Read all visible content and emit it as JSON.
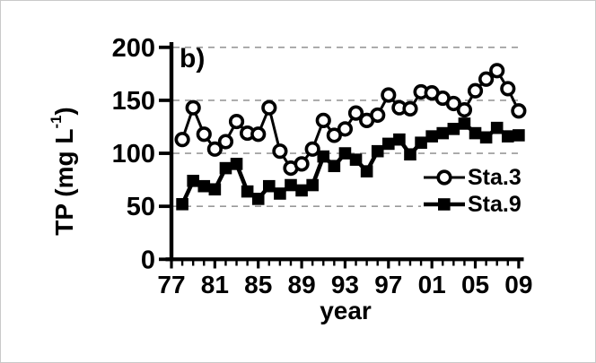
{
  "figure": {
    "panel_label": "b)",
    "y_axis": {
      "title_main": "TP (mg L",
      "title_sup": "-1",
      "title_close": ")",
      "tick_labels": [
        "0",
        "50",
        "100",
        "150",
        "200"
      ],
      "tick_values": [
        0,
        50,
        100,
        150,
        200
      ]
    },
    "x_axis": {
      "label": "year",
      "tick_labels": [
        "77",
        "81",
        "85",
        "89",
        "93",
        "97",
        "01",
        "05",
        "09"
      ],
      "tick_values": [
        1977,
        1981,
        1985,
        1989,
        1993,
        1997,
        2001,
        2005,
        2009
      ]
    },
    "legend": [
      {
        "label": "Sta.3",
        "marker": "open-circle"
      },
      {
        "label": "Sta.9",
        "marker": "filled-square"
      }
    ]
  },
  "chart_data": {
    "type": "line",
    "title": "",
    "xlabel": "year",
    "ylabel": "TP (mg L-1)",
    "ylim": [
      0,
      200
    ],
    "xlim": [
      1977,
      2009
    ],
    "grid": "horizontal-dashed",
    "legend_position": "inside-right",
    "x": [
      1978,
      1979,
      1980,
      1981,
      1982,
      1983,
      1984,
      1985,
      1986,
      1987,
      1988,
      1989,
      1990,
      1991,
      1992,
      1993,
      1994,
      1995,
      1996,
      1997,
      1998,
      1999,
      2000,
      2001,
      2002,
      2003,
      2004,
      2005,
      2006,
      2007,
      2008,
      2009
    ],
    "series": [
      {
        "name": "Sta.3",
        "marker": "open-circle",
        "values": [
          113,
          143,
          118,
          104,
          111,
          130,
          119,
          118,
          143,
          102,
          86,
          90,
          104,
          131,
          117,
          123,
          138,
          131,
          136,
          155,
          143,
          142,
          158,
          157,
          152,
          147,
          141,
          159,
          170,
          178,
          161,
          140
        ]
      },
      {
        "name": "Sta.9",
        "marker": "filled-square",
        "values": [
          52,
          74,
          69,
          66,
          86,
          90,
          64,
          57,
          69,
          62,
          70,
          65,
          70,
          97,
          88,
          100,
          94,
          83,
          102,
          109,
          113,
          99,
          110,
          116,
          119,
          123,
          128,
          119,
          115,
          124,
          116,
          117
        ]
      }
    ]
  },
  "colors": {
    "foreground": "#000000",
    "grid": "#999999",
    "background": "#ffffff"
  }
}
